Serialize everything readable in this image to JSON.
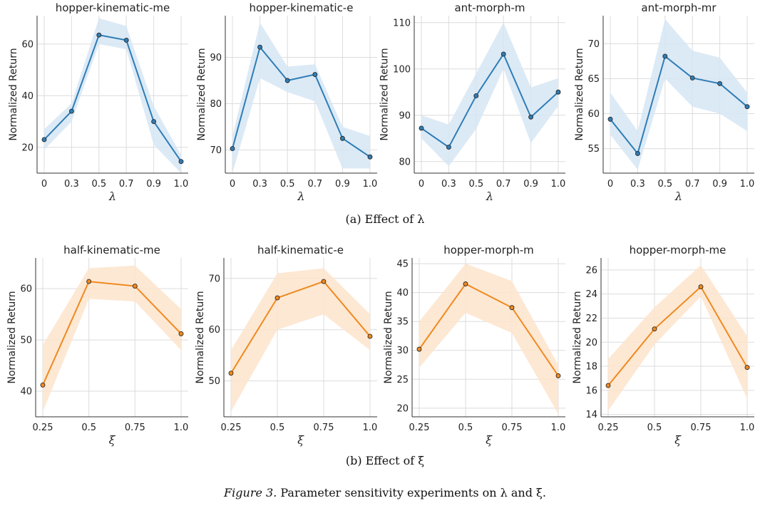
{
  "colors": {
    "blue": "#2f7db5",
    "blue_band": "#d6e6f4",
    "orange": "#f0891e",
    "orange_band": "#fde4cc"
  },
  "captions": {
    "a": "(a)  Effect of λ",
    "b": "(b)  Effect of ξ",
    "figure_label": "Figure 3.",
    "figure_text": " Parameter sensitivity experiments on λ and ξ."
  },
  "chart_data": [
    {
      "type": "line",
      "title": "hopper-kinematic-me",
      "color": "blue",
      "x": [
        "0",
        "0.3",
        "0.5",
        "0.7",
        "0.9",
        "1.0"
      ],
      "y": [
        23,
        34,
        63.5,
        61.5,
        30,
        14.5
      ],
      "band_lo": [
        19,
        30,
        60,
        58,
        21,
        10
      ],
      "band_hi": [
        27,
        37,
        70,
        67,
        36,
        17
      ],
      "xlabel": "λ",
      "ylabel": "Normalized Return",
      "ylim": [
        10,
        71
      ],
      "yticks": [
        20,
        40,
        60
      ]
    },
    {
      "type": "line",
      "title": "hopper-kinematic-e",
      "color": "blue",
      "x": [
        "0",
        "0.3",
        "0.5",
        "0.7",
        "0.9",
        "1.0"
      ],
      "y": [
        70.3,
        92.2,
        85,
        86.3,
        72.5,
        68.5
      ],
      "band_lo": [
        65,
        85.5,
        82.5,
        80.5,
        66,
        66
      ],
      "band_hi": [
        73,
        97.5,
        88,
        88.5,
        75,
        73
      ],
      "xlabel": "λ",
      "ylabel": "Normalized Return",
      "ylim": [
        65,
        99
      ],
      "yticks": [
        70,
        80,
        90
      ]
    },
    {
      "type": "line",
      "title": "ant-morph-m",
      "color": "blue",
      "x": [
        "0",
        "0.3",
        "0.5",
        "0.7",
        "0.9",
        "1.0"
      ],
      "y": [
        87.2,
        83.1,
        94.2,
        103.2,
        89.6,
        95
      ],
      "band_lo": [
        85,
        79,
        87,
        100,
        84,
        92
      ],
      "band_hi": [
        90,
        88,
        99,
        110,
        96,
        98
      ],
      "xlabel": "λ",
      "ylabel": "Normalized Return",
      "ylim": [
        77.5,
        111.5
      ],
      "yticks": [
        80,
        90,
        100,
        110
      ]
    },
    {
      "type": "line",
      "title": "ant-morph-mr",
      "color": "blue",
      "x": [
        "0",
        "0.3",
        "0.5",
        "0.7",
        "0.9",
        "1.0"
      ],
      "y": [
        59.2,
        54.3,
        68.2,
        65.1,
        64.3,
        61
      ],
      "band_lo": [
        57,
        52,
        65,
        61,
        60,
        57.5
      ],
      "band_hi": [
        63,
        57.5,
        73.5,
        69,
        68,
        63
      ],
      "xlabel": "λ",
      "ylabel": "Normalized Return",
      "ylim": [
        51.5,
        74
      ],
      "yticks": [
        55,
        60,
        65,
        70
      ]
    },
    {
      "type": "line",
      "title": "half-kinematic-me",
      "color": "orange",
      "x": [
        "0.25",
        "0.5",
        "0.75",
        "1.0"
      ],
      "y": [
        41.2,
        61.4,
        60.5,
        51.2
      ],
      "band_lo": [
        36,
        58,
        57.5,
        48
      ],
      "band_hi": [
        49,
        64,
        64.5,
        56
      ],
      "xlabel": "ξ",
      "ylabel": "Normalized Return",
      "ylim": [
        35,
        66
      ],
      "yticks": [
        40,
        50,
        60
      ]
    },
    {
      "type": "line",
      "title": "half-kinematic-e",
      "color": "orange",
      "x": [
        "0.25",
        "0.5",
        "0.75",
        "1.0"
      ],
      "y": [
        51.5,
        66.2,
        69.4,
        58.7
      ],
      "band_lo": [
        44,
        60,
        63,
        56
      ],
      "band_hi": [
        56,
        71,
        72,
        63
      ],
      "xlabel": "ξ",
      "ylabel": "Normalized Return",
      "ylim": [
        43,
        74
      ],
      "yticks": [
        50,
        60,
        70
      ]
    },
    {
      "type": "line",
      "title": "hopper-morph-m",
      "color": "orange",
      "x": [
        "0.25",
        "0.5",
        "0.75",
        "1.0"
      ],
      "y": [
        30.2,
        41.5,
        37.4,
        25.6
      ],
      "band_lo": [
        27,
        36.5,
        33,
        19
      ],
      "band_hi": [
        35,
        45,
        42,
        27.5
      ],
      "xlabel": "ξ",
      "ylabel": "Normalized Return",
      "ylim": [
        18.5,
        46
      ],
      "yticks": [
        20,
        25,
        30,
        35,
        40,
        45
      ]
    },
    {
      "type": "line",
      "title": "hopper-morph-me",
      "color": "orange",
      "x": [
        "0.25",
        "0.5",
        "0.75",
        "1.0"
      ],
      "y": [
        16.4,
        21.1,
        24.6,
        17.9
      ],
      "band_lo": [
        14.3,
        19.8,
        23.8,
        15.3
      ],
      "band_hi": [
        18.6,
        22.9,
        26.4,
        20.5
      ],
      "xlabel": "ξ",
      "ylabel": "Normalized Return",
      "ylim": [
        13.8,
        27
      ],
      "yticks": [
        14,
        16,
        18,
        20,
        22,
        24,
        26
      ]
    }
  ]
}
